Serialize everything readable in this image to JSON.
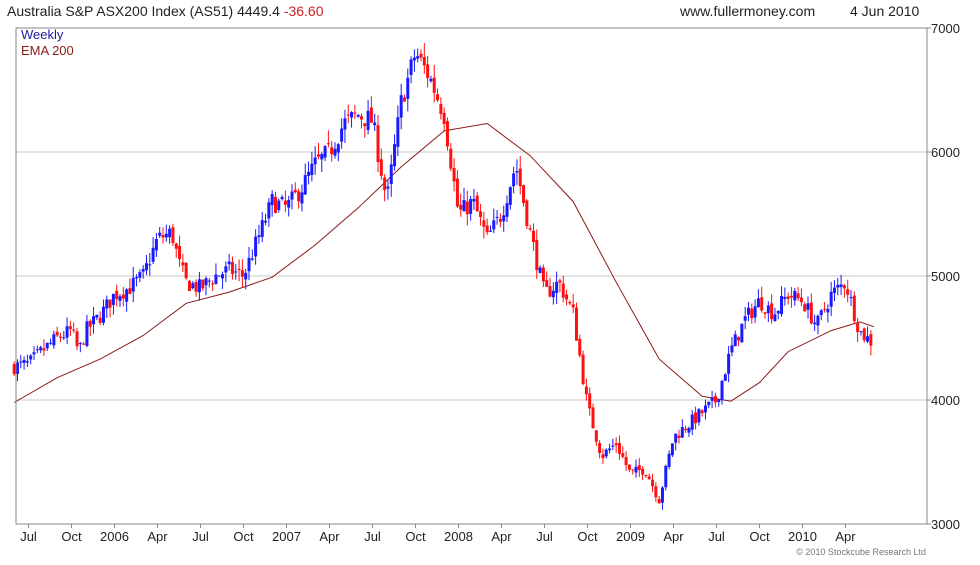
{
  "header": {
    "title_prefix": "Australia S&P ASX200 Index (AS51) 4449.4",
    "change": "-36.60",
    "site": "www.fullermoney.com",
    "date": "4 Jun 2010"
  },
  "legend": {
    "weekly": "Weekly",
    "ema": "EMA 200"
  },
  "footer": {
    "copyright": "© 2010 Stockcube Research Ltd"
  },
  "colors": {
    "up": "#1a1aff",
    "down": "#ff1010",
    "ema": "#8b1a1a",
    "grid": "#c8c8c8",
    "change": "#cc2222",
    "legend_weekly": "#1a1aa0",
    "legend_ema": "#8b1a1a"
  },
  "chart_data": {
    "type": "candlestick",
    "frequency": "weekly",
    "ylim": [
      3000,
      7000
    ],
    "yticks": [
      3000,
      4000,
      5000,
      6000,
      7000
    ],
    "x_ticks": [
      {
        "label": "Jul",
        "date": "2005-07"
      },
      {
        "label": "Oct",
        "date": "2005-10"
      },
      {
        "label": "2006",
        "date": "2006-01"
      },
      {
        "label": "Apr",
        "date": "2006-04"
      },
      {
        "label": "Jul",
        "date": "2006-07"
      },
      {
        "label": "Oct",
        "date": "2006-10"
      },
      {
        "label": "2007",
        "date": "2007-01"
      },
      {
        "label": "Apr",
        "date": "2007-04"
      },
      {
        "label": "Jul",
        "date": "2007-07"
      },
      {
        "label": "Oct",
        "date": "2007-10"
      },
      {
        "label": "2008",
        "date": "2008-01"
      },
      {
        "label": "Apr",
        "date": "2008-04"
      },
      {
        "label": "Jul",
        "date": "2008-07"
      },
      {
        "label": "Oct",
        "date": "2008-10"
      },
      {
        "label": "2009",
        "date": "2009-01"
      },
      {
        "label": "Apr",
        "date": "2009-04"
      },
      {
        "label": "Jul",
        "date": "2009-07"
      },
      {
        "label": "Oct",
        "date": "2009-10"
      },
      {
        "label": "2010",
        "date": "2010-01"
      },
      {
        "label": "Apr",
        "date": "2010-04"
      }
    ],
    "close_path": [
      [
        "2005-06",
        4270
      ],
      [
        "2005-07",
        4290
      ],
      [
        "2005-08",
        4400
      ],
      [
        "2005-09",
        4500
      ],
      [
        "2005-10",
        4560
      ],
      [
        "2005-10",
        4380
      ],
      [
        "2005-11",
        4560
      ],
      [
        "2005-12",
        4680
      ],
      [
        "2006-01",
        4850
      ],
      [
        "2006-02",
        4900
      ],
      [
        "2006-03",
        5000
      ],
      [
        "2006-04",
        5300
      ],
      [
        "2006-05",
        5350
      ],
      [
        "2006-05",
        5100
      ],
      [
        "2006-06",
        4950
      ],
      [
        "2006-07",
        4900
      ],
      [
        "2006-08",
        5000
      ],
      [
        "2006-09",
        5050
      ],
      [
        "2006-10",
        5000
      ],
      [
        "2006-11",
        5300
      ],
      [
        "2006-12",
        5600
      ],
      [
        "2007-01",
        5550
      ],
      [
        "2007-02",
        5700
      ],
      [
        "2007-03",
        5900
      ],
      [
        "2007-04",
        6000
      ],
      [
        "2007-05",
        6230
      ],
      [
        "2007-06",
        6300
      ],
      [
        "2007-07",
        6250
      ],
      [
        "2007-08",
        5600
      ],
      [
        "2007-09",
        6400
      ],
      [
        "2007-10",
        6800
      ],
      [
        "2007-11",
        6600
      ],
      [
        "2007-12",
        6300
      ],
      [
        "2008-01",
        5500
      ],
      [
        "2008-02",
        5600
      ],
      [
        "2008-03",
        5300
      ],
      [
        "2008-04",
        5500
      ],
      [
        "2008-05",
        5900
      ],
      [
        "2008-06",
        5350
      ],
      [
        "2008-07",
        4850
      ],
      [
        "2008-08",
        4950
      ],
      [
        "2008-09",
        4700
      ],
      [
        "2008-10",
        3950
      ],
      [
        "2008-11",
        3550
      ],
      [
        "2008-12",
        3650
      ],
      [
        "2009-01",
        3400
      ],
      [
        "2009-02",
        3450
      ],
      [
        "2009-03",
        3200
      ],
      [
        "2009-04",
        3700
      ],
      [
        "2009-05",
        3800
      ],
      [
        "2009-06",
        3900
      ],
      [
        "2009-07",
        4000
      ],
      [
        "2009-08",
        4400
      ],
      [
        "2009-09",
        4650
      ],
      [
        "2009-10",
        4800
      ],
      [
        "2009-11",
        4700
      ],
      [
        "2009-12",
        4850
      ],
      [
        "2010-01",
        4800
      ],
      [
        "2010-02",
        4600
      ],
      [
        "2010-03",
        4850
      ],
      [
        "2010-04",
        4950
      ],
      [
        "2010-05",
        4550
      ],
      [
        "2010-06",
        4450
      ]
    ],
    "ema_path": [
      [
        "2005-06",
        3980
      ],
      [
        "2005-09",
        4180
      ],
      [
        "2005-12",
        4330
      ],
      [
        "2006-03",
        4520
      ],
      [
        "2006-06",
        4780
      ],
      [
        "2006-09",
        4870
      ],
      [
        "2006-12",
        4990
      ],
      [
        "2007-03",
        5250
      ],
      [
        "2007-06",
        5550
      ],
      [
        "2007-09",
        5880
      ],
      [
        "2007-12",
        6170
      ],
      [
        "2008-03",
        6230
      ],
      [
        "2008-06",
        5970
      ],
      [
        "2008-09",
        5600
      ],
      [
        "2008-12",
        4950
      ],
      [
        "2009-03",
        4330
      ],
      [
        "2009-06",
        4030
      ],
      [
        "2009-08",
        3990
      ],
      [
        "2009-10",
        4140
      ],
      [
        "2009-12",
        4390
      ],
      [
        "2010-03",
        4560
      ],
      [
        "2010-05",
        4630
      ],
      [
        "2010-06",
        4590
      ]
    ]
  }
}
